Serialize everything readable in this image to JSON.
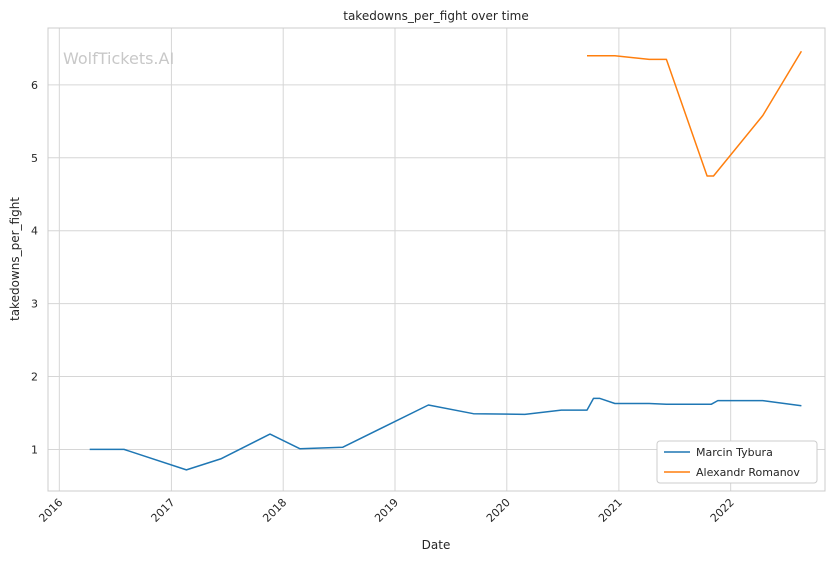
{
  "chart_data": {
    "type": "line",
    "title": "takedowns_per_fight over time",
    "xlabel": "Date",
    "ylabel": "takedowns_per_fight",
    "watermark": "WolfTickets.AI",
    "x_tick_labels": [
      "2016",
      "2017",
      "2018",
      "2019",
      "2020",
      "2021",
      "2022"
    ],
    "y_ticks": [
      1,
      2,
      3,
      4,
      5,
      6
    ],
    "xlim": [
      "2015-11-25",
      "2022-11-05"
    ],
    "ylim": [
      0.43,
      6.78
    ],
    "grid": true,
    "legend_position": "bottom-right",
    "series": [
      {
        "name": "Marcin Tybura",
        "color": "#1f77b4",
        "points": [
          {
            "x": "2016-04-09",
            "y": 1.0
          },
          {
            "x": "2016-07-30",
            "y": 1.0
          },
          {
            "x": "2017-02-19",
            "y": 0.72
          },
          {
            "x": "2017-06-11",
            "y": 0.87
          },
          {
            "x": "2017-11-19",
            "y": 1.21
          },
          {
            "x": "2018-02-24",
            "y": 1.01
          },
          {
            "x": "2018-07-14",
            "y": 1.03
          },
          {
            "x": "2019-04-20",
            "y": 1.61
          },
          {
            "x": "2019-09-14",
            "y": 1.49
          },
          {
            "x": "2020-02-29",
            "y": 1.48
          },
          {
            "x": "2020-06-27",
            "y": 1.54
          },
          {
            "x": "2020-09-19",
            "y": 1.54
          },
          {
            "x": "2020-10-10",
            "y": 1.7
          },
          {
            "x": "2020-10-31",
            "y": 1.7
          },
          {
            "x": "2020-12-19",
            "y": 1.63
          },
          {
            "x": "2021-04-10",
            "y": 1.63
          },
          {
            "x": "2021-06-05",
            "y": 1.62
          },
          {
            "x": "2021-10-30",
            "y": 1.62
          },
          {
            "x": "2021-11-20",
            "y": 1.67
          },
          {
            "x": "2022-04-16",
            "y": 1.67
          },
          {
            "x": "2022-08-20",
            "y": 1.6
          }
        ]
      },
      {
        "name": "Alexandr Romanov",
        "color": "#ff7f0e",
        "points": [
          {
            "x": "2020-09-19",
            "y": 6.4
          },
          {
            "x": "2020-12-19",
            "y": 6.4
          },
          {
            "x": "2021-04-10",
            "y": 6.35
          },
          {
            "x": "2021-06-05",
            "y": 6.35
          },
          {
            "x": "2021-10-16",
            "y": 4.75
          },
          {
            "x": "2021-11-06",
            "y": 4.75
          },
          {
            "x": "2022-04-16",
            "y": 5.58
          },
          {
            "x": "2022-08-20",
            "y": 6.46
          }
        ]
      }
    ]
  }
}
